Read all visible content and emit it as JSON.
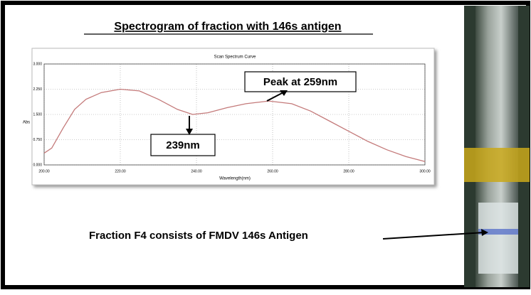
{
  "slide": {
    "title": "Spectrogram of  fraction with 146s antigen",
    "caption": "Fraction F4 consists of  FMDV 146s Antigen"
  },
  "chart_data": {
    "type": "line",
    "title": "Scan Spectrum Curve",
    "x_label": "Wavelength(nm)",
    "y_label": "Abs",
    "annotations": [
      "Peak at 259nm",
      "239nm"
    ],
    "x": [
      200,
      202,
      205,
      208,
      211,
      215,
      220,
      225,
      230,
      235,
      239,
      243,
      248,
      253,
      259,
      265,
      270,
      275,
      280,
      285,
      290,
      295,
      300
    ],
    "series": [
      {
        "name": "Abs",
        "color": "#c47a7a",
        "values": [
          0.35,
          0.5,
          1.1,
          1.65,
          1.95,
          2.15,
          2.25,
          2.2,
          1.95,
          1.65,
          1.5,
          1.55,
          1.7,
          1.82,
          1.9,
          1.82,
          1.6,
          1.3,
          1.0,
          0.7,
          0.45,
          0.25,
          0.1
        ]
      }
    ],
    "xlim": [
      200,
      300
    ],
    "ylim": [
      0,
      3
    ],
    "xticks": [
      {
        "value": 200,
        "label": "200.00"
      },
      {
        "value": 220,
        "label": "220.00"
      },
      {
        "value": 240,
        "label": "240.00"
      },
      {
        "value": 260,
        "label": "260.00"
      },
      {
        "value": 280,
        "label": "280.00"
      },
      {
        "value": 300,
        "label": "300.00"
      }
    ],
    "yticks": [
      {
        "value": 0,
        "label": "0.000"
      },
      {
        "value": 0.75,
        "label": "0.750"
      },
      {
        "value": 1.5,
        "label": "1.500"
      },
      {
        "value": 2.25,
        "label": "2.250"
      },
      {
        "value": 3,
        "label": "3.000"
      }
    ],
    "grid": true
  }
}
